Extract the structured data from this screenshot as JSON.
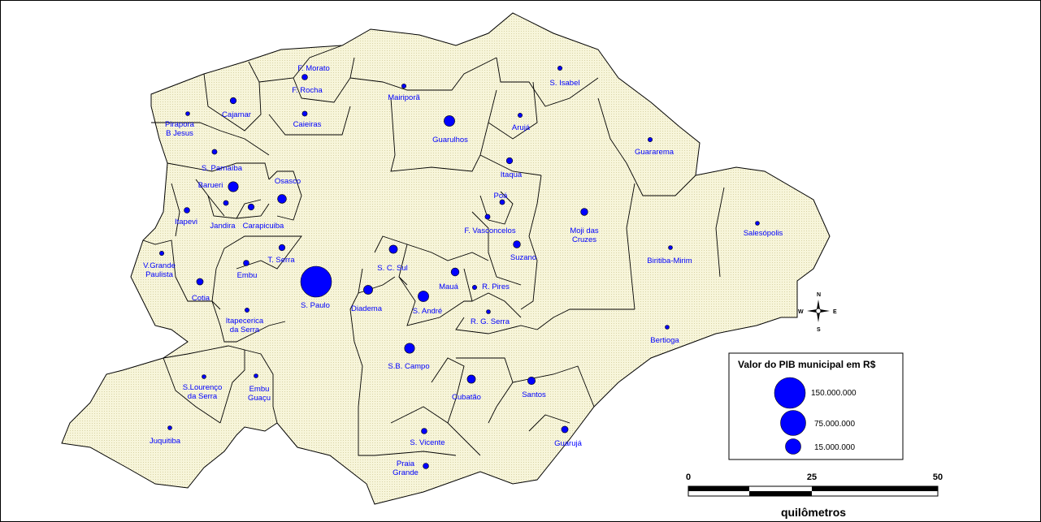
{
  "colors": {
    "region_fill": "#f7f5da",
    "region_stroke": "#000000",
    "symbol": "#0000ff",
    "label": "#0000ff"
  },
  "places": [
    {
      "id": "f-morato",
      "label": "F. Morato",
      "gdp": 4000000
    },
    {
      "id": "f-rocha",
      "label": "F. Rocha",
      "gdp": 5000000
    },
    {
      "id": "mairipora",
      "label": "Mairiporã",
      "gdp": 3000000
    },
    {
      "id": "s-isabel",
      "label": "S. Isabel",
      "gdp": 3000000
    },
    {
      "id": "caieiras",
      "label": "Caieiras",
      "gdp": 4000000
    },
    {
      "id": "cajamar",
      "label": "Cajamar",
      "gdp": 6000000
    },
    {
      "id": "pirapora",
      "label": "Pirapora\nB Jesus",
      "gdp": 1000000
    },
    {
      "id": "guarulhos",
      "label": "Guarulhos",
      "gdp": 18000000
    },
    {
      "id": "aruja",
      "label": "Arujá",
      "gdp": 3000000
    },
    {
      "id": "guararema",
      "label": "Guararema",
      "gdp": 3000000
    },
    {
      "id": "s-parnaiba",
      "label": "S. Parnaíba",
      "gdp": 4000000
    },
    {
      "id": "itaqua",
      "label": "Itaqua",
      "gdp": 6000000
    },
    {
      "id": "barueri",
      "label": "Barueri",
      "gdp": 16000000
    },
    {
      "id": "osasco",
      "label": "Osasco",
      "gdp": 12000000
    },
    {
      "id": "poa",
      "label": "Poá",
      "gdp": 4000000
    },
    {
      "id": "jandira",
      "label": "Jandira",
      "gdp": 4000000
    },
    {
      "id": "carapicuiba",
      "label": "Carapicuiba",
      "gdp": 6000000
    },
    {
      "id": "itapevi",
      "label": "Itapevi",
      "gdp": 5000000
    },
    {
      "id": "moji",
      "label": "Moji das\nCruzes",
      "gdp": 8000000
    },
    {
      "id": "salesopolis",
      "label": "Salesópolis",
      "gdp": 1000000
    },
    {
      "id": "f-vasconcelos",
      "label": "F. Vasconcelos",
      "gdp": 4000000
    },
    {
      "id": "suzano",
      "label": "Suzano",
      "gdp": 8000000
    },
    {
      "id": "biritiba",
      "label": "Biritiba-Mirim",
      "gdp": 1000000
    },
    {
      "id": "t-serra",
      "label": "T. Serra",
      "gdp": 6000000
    },
    {
      "id": "v-grande",
      "label": "V.Grande\nPaulista",
      "gdp": 3000000
    },
    {
      "id": "s-c-sul",
      "label": "S. C. Sul",
      "gdp": 11000000
    },
    {
      "id": "embu",
      "label": "Embu",
      "gdp": 5000000
    },
    {
      "id": "maua",
      "label": "Mauá",
      "gdp": 10000000
    },
    {
      "id": "cotia",
      "label": "Cotia",
      "gdp": 7000000
    },
    {
      "id": "s-paulo",
      "label": "S. Paulo",
      "gdp": 150000000
    },
    {
      "id": "diadema",
      "label": "Diadema",
      "gdp": 13000000
    },
    {
      "id": "r-pires",
      "label": "R. Pires",
      "gdp": 3000000
    },
    {
      "id": "s-andre",
      "label": "S. André",
      "gdp": 18000000
    },
    {
      "id": "itapecerica",
      "label": "Itapecerica\nda Serra",
      "gdp": 3000000
    },
    {
      "id": "r-g-serra",
      "label": "R. G. Serra",
      "gdp": 1000000
    },
    {
      "id": "bertioga",
      "label": "Bertioga",
      "gdp": 2000000
    },
    {
      "id": "sb-campo",
      "label": "S.B. Campo",
      "gdp": 16000000
    },
    {
      "id": "s-lourenco",
      "label": "S.Lourenço\nda Serra",
      "gdp": 1000000
    },
    {
      "id": "embu-guacu",
      "label": "Embu\nGuaçu",
      "gdp": 2000000
    },
    {
      "id": "cubatao",
      "label": "Cubatão",
      "gdp": 11000000
    },
    {
      "id": "santos",
      "label": "Santos",
      "gdp": 9000000
    },
    {
      "id": "juquitiba",
      "label": "Juquitiba",
      "gdp": 1000000
    },
    {
      "id": "s-vicente",
      "label": "S. Vicente",
      "gdp": 5000000
    },
    {
      "id": "guaruja",
      "label": "Guarujá",
      "gdp": 7000000
    },
    {
      "id": "praia-grande",
      "label": "Praia\nGrande",
      "gdp": 5000000
    }
  ],
  "legend": {
    "title": "Valor do PIB municipal em R$",
    "entries": [
      {
        "label": "150.000.000",
        "value": 150000000
      },
      {
        "label": "75.000.000",
        "value": 75000000
      },
      {
        "label": "15.000.000",
        "value": 15000000
      }
    ]
  },
  "scale": {
    "ticks": [
      "0",
      "25",
      "50"
    ],
    "unit": "quilômetros"
  },
  "compass": {
    "n": "N",
    "s": "S",
    "e": "E",
    "w": "W"
  }
}
